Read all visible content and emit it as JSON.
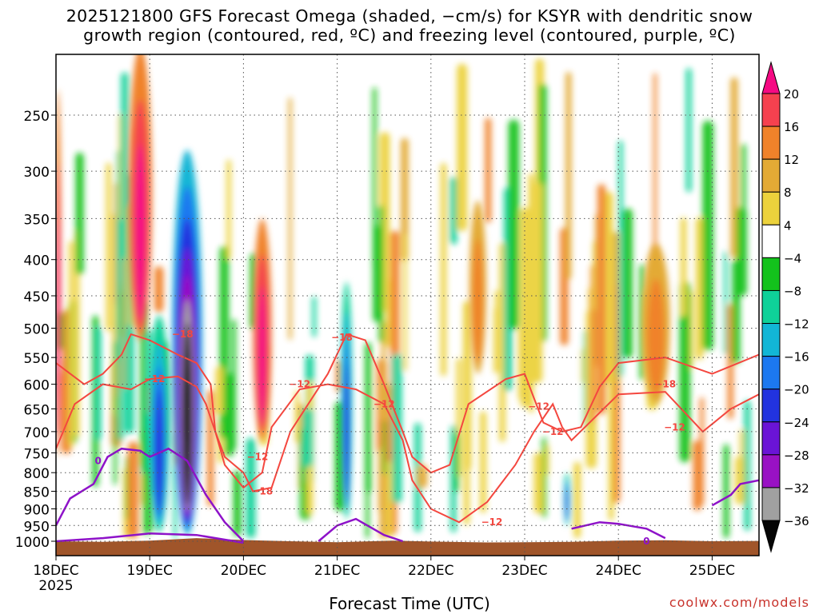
{
  "title": {
    "line1": "2025121800 GFS Forecast Omega (shaded, −cm/s) for KSYR with dendritic snow",
    "line2": "growth region (contoured, red, ºC) and freezing level (contoured, purple, ºC)"
  },
  "footer": {
    "xlabel": "Forecast Time (UTC)",
    "credit": "coolwx.com/models"
  },
  "chart_data": {
    "type": "heatmap",
    "x_axis": {
      "label": "Forecast Time (UTC)",
      "ticks": [
        {
          "label": "18DEC",
          "sub": "2025",
          "day": 0
        },
        {
          "label": "19DEC",
          "day": 1
        },
        {
          "label": "20DEC",
          "day": 2
        },
        {
          "label": "21DEC",
          "day": 3
        },
        {
          "label": "22DEC",
          "day": 4
        },
        {
          "label": "23DEC",
          "day": 5
        },
        {
          "label": "24DEC",
          "day": 6
        },
        {
          "label": "25DEC",
          "day": 7
        }
      ],
      "range_days": [
        0,
        7.5
      ]
    },
    "y_axis": {
      "ticks": [
        250,
        300,
        350,
        400,
        450,
        500,
        550,
        600,
        650,
        700,
        750,
        800,
        850,
        900,
        950,
        1000
      ],
      "range_hpa": [
        200,
        1020
      ],
      "direction": "pressure decreasing upward"
    },
    "colorbar": {
      "labels": [
        "20",
        "16",
        "12",
        "8",
        "4",
        "−4",
        "−8",
        "−12",
        "−16",
        "−20",
        "−24",
        "−28",
        "−32",
        "−36"
      ],
      "colors": [
        "#f50a83",
        "#f5414f",
        "#f0822a",
        "#e3aa35",
        "#ecd23c",
        "#ffffff",
        "#13c21c",
        "#0fd199",
        "#12b6d6",
        "#1c78f0",
        "#2233df",
        "#6a14d6",
        "#9911c4",
        "#a0a0a0",
        "#050505"
      ]
    },
    "omega_regions": [
      {
        "day": 0.02,
        "p_top": 230,
        "p_bot": 760,
        "cat": "strong_neg",
        "width": 0.07
      },
      {
        "day": 0.9,
        "p_top": 200,
        "p_bot": 520,
        "cat": "strong_neg",
        "width": 0.25
      },
      {
        "day": 1.4,
        "p_top": 280,
        "p_bot": 980,
        "cat": "very_strong_pos",
        "width": 0.32
      },
      {
        "day": 1.1,
        "p_top": 480,
        "p_bot": 970,
        "cat": "strong_pos",
        "width": 0.22
      },
      {
        "day": 2.2,
        "p_top": 350,
        "p_bot": 720,
        "cat": "strong_neg",
        "width": 0.2
      },
      {
        "day": 3.1,
        "p_top": 430,
        "p_bot": 930,
        "cat": "strong_pos",
        "width": 0.12
      },
      {
        "day": 4.5,
        "p_top": 330,
        "p_bot": 580,
        "cat": "moderate_neg",
        "width": 0.18
      },
      {
        "day": 5.45,
        "p_top": 800,
        "p_bot": 950,
        "cat": "strong_pos",
        "width": 0.06
      },
      {
        "day": 6.4,
        "p_top": 380,
        "p_bot": 640,
        "cat": "moderate_neg",
        "width": 0.3
      }
    ],
    "contours": {
      "dgz_red": {
        "color": "#f4473f",
        "labels": [
          "−18",
          "−12",
          "−18",
          "−12",
          "−12",
          "−18",
          "−12",
          "−12",
          "−12",
          "−12",
          "−18",
          "−12"
        ]
      },
      "freezing_purple": {
        "color": "#8e12c9",
        "labels": [
          "0",
          "0"
        ]
      }
    },
    "terrain_color": "#a0552a",
    "grid": "dotted"
  }
}
